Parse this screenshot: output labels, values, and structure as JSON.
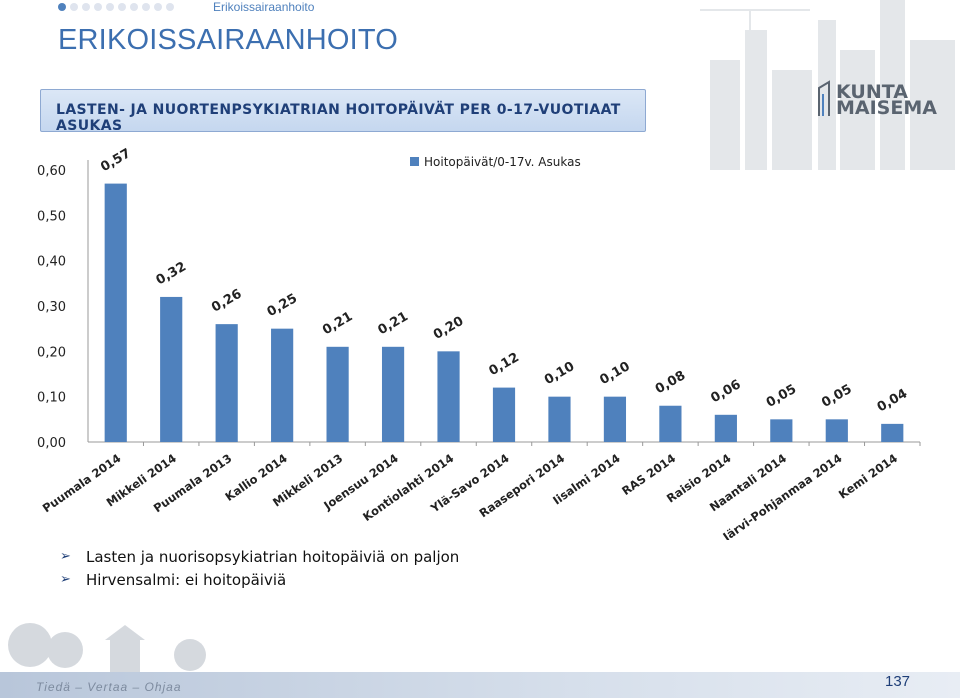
{
  "header": {
    "breadcrumb": "Erikoissairaanhoito",
    "progress_dots": 10,
    "active_dot": 0,
    "title": "ERIKOISSAIRAANHOITO",
    "subtitle": "LASTEN- JA NUORTENPSYKIATRIAN HOITOPÄIVÄT PER 0-17-VUOTIAAT ASUKAS",
    "logo_line1": "KUNTA",
    "logo_line2": "MAISEMA"
  },
  "chart_data": {
    "type": "bar",
    "title": "",
    "xlabel": "",
    "ylabel": "",
    "ylim": [
      0,
      0.6
    ],
    "yticks": [
      "0,00",
      "0,10",
      "0,20",
      "0,30",
      "0,40",
      "0,50",
      "0,60"
    ],
    "grid": false,
    "legend_position": "top-right",
    "series": [
      {
        "name": "Hoitopäivät/0-17v. Asukas",
        "color": "#4f81bd",
        "values": [
          0.57,
          0.32,
          0.26,
          0.25,
          0.21,
          0.21,
          0.2,
          0.12,
          0.1,
          0.1,
          0.08,
          0.06,
          0.05,
          0.05,
          0.04
        ],
        "labels": [
          "0,57",
          "0,32",
          "0,26",
          "0,25",
          "0,21",
          "0,21",
          "0,20",
          "0,12",
          "0,10",
          "0,10",
          "0,08",
          "0,06",
          "0,05",
          "0,05",
          "0,04"
        ]
      }
    ],
    "categories": [
      "Puumala 2014",
      "Mikkeli 2014",
      "Puumala 2013",
      "Kallio 2014",
      "Mikkeli 2013",
      "Joensuu 2014",
      "Kontiolahti 2014",
      "Ylä-Savo 2014",
      "Raasepori 2014",
      "Iisalmi 2014",
      "RAS 2014",
      "Raisio 2014",
      "Naantali 2014",
      "Järvi-Pohjanmaa 2014",
      "Kemi 2014"
    ]
  },
  "bullets": [
    "Lasten ja nuorisopsykiatrian hoitopäiviä on paljon",
    "Hirvensalmi: ei hoitopäiviä"
  ],
  "footer": {
    "tagline": "Tiedä – Vertaa – Ohjaa",
    "page_number": "137"
  }
}
